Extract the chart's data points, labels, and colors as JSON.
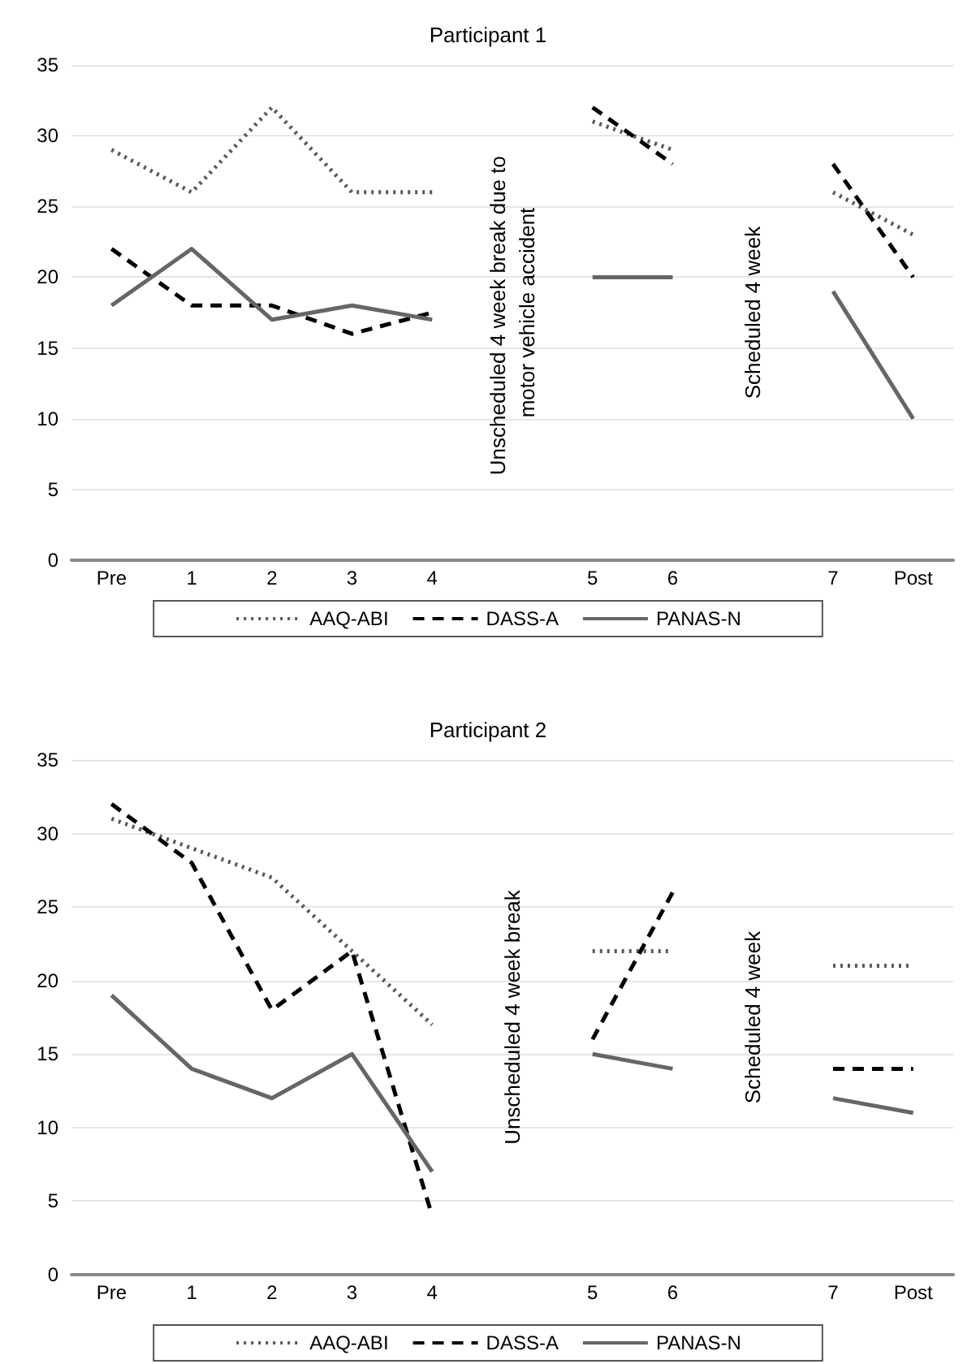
{
  "chart_data": [
    {
      "type": "line",
      "title": "Participant 1",
      "categories": [
        "Pre",
        "1",
        "2",
        "3",
        "4",
        null,
        "5",
        "6",
        null,
        "7",
        "Post"
      ],
      "series": [
        {
          "name": "AAQ-ABI",
          "color": "#595959",
          "line_style": "dotted",
          "values": [
            29,
            26,
            32,
            26,
            26,
            null,
            31,
            29,
            null,
            26,
            23
          ]
        },
        {
          "name": "DASS-A",
          "color": "#000000",
          "line_style": "dashed",
          "values": [
            22,
            18,
            18,
            16,
            17.5,
            null,
            32,
            28,
            null,
            28,
            20
          ]
        },
        {
          "name": "PANAS-N",
          "color": "#666666",
          "line_style": "solid",
          "values": [
            18,
            22,
            17,
            18,
            17,
            null,
            20,
            20,
            null,
            19,
            10
          ]
        }
      ],
      "annotations": [
        "Unscheduled 4 week break due to motor vehicle accident",
        "Scheduled 4 week"
      ],
      "ylim": [
        0,
        35
      ],
      "yticks": [
        0,
        5,
        10,
        15,
        20,
        25,
        30,
        35
      ],
      "grid": "y",
      "legend": "bottom",
      "marker": "none"
    },
    {
      "type": "line",
      "title": "Participant 2",
      "categories": [
        "Pre",
        "1",
        "2",
        "3",
        "4",
        null,
        "5",
        "6",
        null,
        "7",
        "Post"
      ],
      "series": [
        {
          "name": "AAQ-ABI",
          "color": "#595959",
          "line_style": "dotted",
          "values": [
            31,
            29,
            27,
            22,
            17,
            null,
            22,
            22,
            null,
            21,
            21
          ]
        },
        {
          "name": "DASS-A",
          "color": "#000000",
          "line_style": "dashed",
          "values": [
            32,
            28,
            18,
            22,
            4,
            null,
            16,
            26,
            null,
            14,
            14
          ]
        },
        {
          "name": "PANAS-N",
          "color": "#666666",
          "line_style": "solid",
          "values": [
            19,
            14,
            12,
            15,
            7,
            null,
            15,
            14,
            null,
            12,
            11
          ]
        }
      ],
      "annotations": [
        "Unscheduled 4 week break",
        "Scheduled 4 week"
      ],
      "ylim": [
        0,
        35
      ],
      "yticks": [
        0,
        5,
        10,
        15,
        20,
        25,
        30,
        35
      ],
      "grid": "y",
      "legend": "bottom",
      "marker": "none"
    }
  ]
}
